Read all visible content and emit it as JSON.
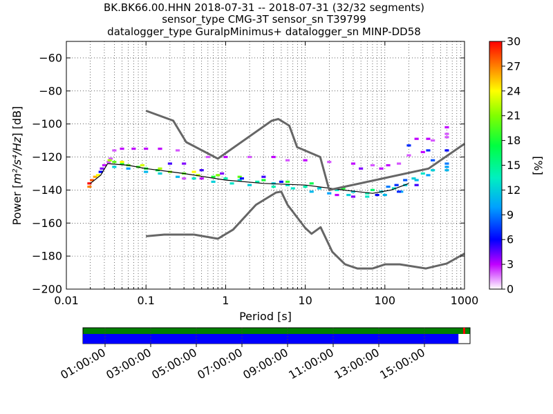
{
  "chart_data": {
    "type": "heatmap",
    "title_lines": [
      "BK.BK66.00.HHN   2018-07-31 -- 2018-07-31  (32/32 segments)",
      "sensor_type CMG-3T sensor_sn T39799",
      "datalogger_type GuralpMinimus+ datalogger_sn MINP-DD58"
    ],
    "xlabel": "Period [s]",
    "ylabel_prefix": "Power [",
    "ylabel_math": "m²/s⁴/Hz",
    "ylabel_suffix": "] [dB]",
    "x_scale": "log",
    "xlim": [
      0.01,
      1000
    ],
    "ylim": [
      -200,
      -50
    ],
    "x_ticks": [
      {
        "value": 0.01,
        "label": "0.01"
      },
      {
        "value": 0.1,
        "label": "0.1"
      },
      {
        "value": 1,
        "label": "1"
      },
      {
        "value": 10,
        "label": "10"
      },
      {
        "value": 100,
        "label": "100"
      },
      {
        "value": 1000,
        "label": "1000"
      }
    ],
    "y_ticks": [
      {
        "value": -60,
        "label": "−60"
      },
      {
        "value": -80,
        "label": "−80"
      },
      {
        "value": -100,
        "label": "−100"
      },
      {
        "value": -120,
        "label": "−120"
      },
      {
        "value": -140,
        "label": "−140"
      },
      {
        "value": -160,
        "label": "−160"
      },
      {
        "value": -180,
        "label": "−180"
      },
      {
        "value": -200,
        "label": "−200"
      }
    ],
    "grid": true,
    "colorbar": {
      "label": "[%]",
      "range": [
        0,
        30
      ],
      "ticks": [
        {
          "value": 0,
          "label": "0"
        },
        {
          "value": 3,
          "label": "3"
        },
        {
          "value": 6,
          "label": "6"
        },
        {
          "value": 9,
          "label": "9"
        },
        {
          "value": 12,
          "label": "12"
        },
        {
          "value": 15,
          "label": "15"
        },
        {
          "value": 18,
          "label": "18"
        },
        {
          "value": 21,
          "label": "21"
        },
        {
          "value": 24,
          "label": "24"
        },
        {
          "value": 27,
          "label": "27"
        },
        {
          "value": 30,
          "label": "30"
        }
      ]
    },
    "noise_models": [
      {
        "name": "",
        "color": "#666666",
        "points": [
          [
            0.1,
            -92
          ],
          [
            0.22,
            -98
          ],
          [
            0.32,
            -111
          ],
          [
            0.8,
            -121
          ],
          [
            3.8,
            -98
          ],
          [
            4.6,
            -97
          ],
          [
            6.3,
            -101
          ],
          [
            7.9,
            -114
          ],
          [
            15.4,
            -120
          ],
          [
            20,
            -140
          ],
          [
            354,
            -127
          ],
          [
            1000,
            -112
          ]
        ]
      },
      {
        "name": "",
        "color": "#666666",
        "points": [
          [
            0.1,
            -168
          ],
          [
            0.17,
            -167
          ],
          [
            0.4,
            -167
          ],
          [
            0.8,
            -169.5
          ],
          [
            1.24,
            -164
          ],
          [
            2.4,
            -149
          ],
          [
            4.3,
            -141.5
          ],
          [
            5,
            -141
          ],
          [
            6,
            -149
          ],
          [
            10,
            -163
          ],
          [
            12,
            -166.5
          ],
          [
            15.6,
            -162.5
          ],
          [
            21.9,
            -177.5
          ],
          [
            31.6,
            -185
          ],
          [
            45,
            -187.5
          ],
          [
            70,
            -187.5
          ],
          [
            101,
            -185
          ],
          [
            154,
            -185
          ],
          [
            328,
            -187.5
          ],
          [
            600,
            -184.5
          ],
          [
            1000,
            -178.5
          ]
        ]
      }
    ],
    "mode_curve": {
      "color": "#000000",
      "points": [
        [
          0.02,
          -136
        ],
        [
          0.027,
          -131
        ],
        [
          0.033,
          -124
        ],
        [
          0.06,
          -125
        ],
        [
          0.1,
          -127
        ],
        [
          0.3,
          -130
        ],
        [
          1,
          -134
        ],
        [
          3,
          -136
        ],
        [
          10,
          -137
        ],
        [
          30,
          -140
        ],
        [
          70,
          -142
        ],
        [
          120,
          -140
        ],
        [
          200,
          -136
        ]
      ]
    },
    "density_cells": [
      {
        "period": 0.0195,
        "power": -138,
        "pct": 27
      },
      {
        "period": 0.0195,
        "power": -136,
        "pct": 30
      },
      {
        "period": 0.021,
        "power": -134,
        "pct": 28
      },
      {
        "period": 0.023,
        "power": -132,
        "pct": 26
      },
      {
        "period": 0.025,
        "power": -131,
        "pct": 24
      },
      {
        "period": 0.027,
        "power": -129,
        "pct": 6
      },
      {
        "period": 0.028,
        "power": -127,
        "pct": 4
      },
      {
        "period": 0.03,
        "power": -125,
        "pct": 3
      },
      {
        "period": 0.034,
        "power": -123,
        "pct": 2
      },
      {
        "period": 0.036,
        "power": -121,
        "pct": 2
      },
      {
        "period": 0.04,
        "power": -116,
        "pct": 2
      },
      {
        "period": 0.05,
        "power": -115,
        "pct": 3
      },
      {
        "period": 0.07,
        "power": -115,
        "pct": 3
      },
      {
        "period": 0.1,
        "power": -115,
        "pct": 3
      },
      {
        "period": 0.15,
        "power": -115,
        "pct": 3
      },
      {
        "period": 0.25,
        "power": -116,
        "pct": 2
      },
      {
        "period": 0.035,
        "power": -122,
        "pct": 22
      },
      {
        "period": 0.04,
        "power": -123,
        "pct": 20
      },
      {
        "period": 0.05,
        "power": -124,
        "pct": 18
      },
      {
        "period": 0.06,
        "power": -125,
        "pct": 20
      },
      {
        "period": 0.08,
        "power": -126,
        "pct": 19
      },
      {
        "period": 0.1,
        "power": -127,
        "pct": 18
      },
      {
        "period": 0.14,
        "power": -128,
        "pct": 17
      },
      {
        "period": 0.2,
        "power": -129,
        "pct": 21
      },
      {
        "period": 0.3,
        "power": -130,
        "pct": 20
      },
      {
        "period": 0.45,
        "power": -131,
        "pct": 22
      },
      {
        "period": 0.7,
        "power": -132,
        "pct": 18
      },
      {
        "period": 1,
        "power": -133,
        "pct": 14
      },
      {
        "period": 1.5,
        "power": -134,
        "pct": 13
      },
      {
        "period": 2.5,
        "power": -135,
        "pct": 14
      },
      {
        "period": 4,
        "power": -136,
        "pct": 12
      },
      {
        "period": 6,
        "power": -137,
        "pct": 13
      },
      {
        "period": 10,
        "power": -138,
        "pct": 14
      },
      {
        "period": 15,
        "power": -139,
        "pct": 12
      },
      {
        "period": 25,
        "power": -140,
        "pct": 13
      },
      {
        "period": 40,
        "power": -141,
        "pct": 12
      },
      {
        "period": 60,
        "power": -142,
        "pct": 14
      },
      {
        "period": 90,
        "power": -141,
        "pct": 12
      },
      {
        "period": 130,
        "power": -139,
        "pct": 13
      },
      {
        "period": 180,
        "power": -137,
        "pct": 12
      },
      {
        "period": 250,
        "power": -134,
        "pct": 11
      },
      {
        "period": 350,
        "power": -131,
        "pct": 10
      },
      {
        "period": 0.04,
        "power": -126,
        "pct": 12
      },
      {
        "period": 0.06,
        "power": -127,
        "pct": 10
      },
      {
        "period": 0.1,
        "power": -129,
        "pct": 11
      },
      {
        "period": 0.15,
        "power": -130,
        "pct": 12
      },
      {
        "period": 0.25,
        "power": -132,
        "pct": 11
      },
      {
        "period": 0.4,
        "power": -133,
        "pct": 13
      },
      {
        "period": 0.7,
        "power": -135,
        "pct": 12
      },
      {
        "period": 1.2,
        "power": -136,
        "pct": 13
      },
      {
        "period": 2,
        "power": -137,
        "pct": 12
      },
      {
        "period": 4,
        "power": -138,
        "pct": 14
      },
      {
        "period": 7,
        "power": -139,
        "pct": 13
      },
      {
        "period": 12,
        "power": -141,
        "pct": 11
      },
      {
        "period": 20,
        "power": -142,
        "pct": 10
      },
      {
        "period": 35,
        "power": -143,
        "pct": 12
      },
      {
        "period": 60,
        "power": -144,
        "pct": 13
      },
      {
        "period": 100,
        "power": -143,
        "pct": 11
      },
      {
        "period": 160,
        "power": -141,
        "pct": 10
      },
      {
        "period": 0.05,
        "power": -123,
        "pct": 24
      },
      {
        "period": 0.09,
        "power": -125,
        "pct": 23
      },
      {
        "period": 0.15,
        "power": -127,
        "pct": 22
      },
      {
        "period": 0.4,
        "power": -129,
        "pct": 24
      },
      {
        "period": 0.8,
        "power": -131,
        "pct": 21
      },
      {
        "period": 1.5,
        "power": -132,
        "pct": 20
      },
      {
        "period": 3,
        "power": -134,
        "pct": 18
      },
      {
        "period": 6,
        "power": -135,
        "pct": 19
      },
      {
        "period": 12,
        "power": -136,
        "pct": 17
      },
      {
        "period": 30,
        "power": -139,
        "pct": 18
      },
      {
        "period": 70,
        "power": -140,
        "pct": 16
      },
      {
        "period": 0.2,
        "power": -124,
        "pct": 5
      },
      {
        "period": 0.3,
        "power": -124,
        "pct": 4
      },
      {
        "period": 0.5,
        "power": -128,
        "pct": 5
      },
      {
        "period": 0.9,
        "power": -130,
        "pct": 4
      },
      {
        "period": 1.6,
        "power": -133,
        "pct": 6
      },
      {
        "period": 3,
        "power": -132,
        "pct": 5
      },
      {
        "period": 5,
        "power": -135,
        "pct": 6
      },
      {
        "period": 0.6,
        "power": -120,
        "pct": 2
      },
      {
        "period": 1,
        "power": -120,
        "pct": 3
      },
      {
        "period": 2,
        "power": -120,
        "pct": 2
      },
      {
        "period": 4,
        "power": -120,
        "pct": 3
      },
      {
        "period": 6,
        "power": -122,
        "pct": 2
      },
      {
        "period": 10,
        "power": -122,
        "pct": 3
      },
      {
        "period": 20,
        "power": -123,
        "pct": 2
      },
      {
        "period": 40,
        "power": -124,
        "pct": 3
      },
      {
        "period": 70,
        "power": -125,
        "pct": 2
      },
      {
        "period": 110,
        "power": -125,
        "pct": 3
      },
      {
        "period": 150,
        "power": -124,
        "pct": 2
      },
      {
        "period": 200,
        "power": -119,
        "pct": 2
      },
      {
        "period": 300,
        "power": -117,
        "pct": 3
      },
      {
        "period": 50,
        "power": -127,
        "pct": 4
      },
      {
        "period": 90,
        "power": -127,
        "pct": 3
      },
      {
        "period": 200,
        "power": -113,
        "pct": 7
      },
      {
        "period": 250,
        "power": -109,
        "pct": 3
      },
      {
        "period": 350,
        "power": -109,
        "pct": 3
      },
      {
        "period": 400,
        "power": -110,
        "pct": 2
      },
      {
        "period": 600,
        "power": -106,
        "pct": 2
      },
      {
        "period": 600,
        "power": -102,
        "pct": 3
      },
      {
        "period": 600,
        "power": -108,
        "pct": 2
      },
      {
        "period": 350,
        "power": -116,
        "pct": 7
      },
      {
        "period": 600,
        "power": -116,
        "pct": 6
      },
      {
        "period": 400,
        "power": -122,
        "pct": 8
      },
      {
        "period": 600,
        "power": -124,
        "pct": 9
      },
      {
        "period": 600,
        "power": -126,
        "pct": 10
      },
      {
        "period": 600,
        "power": -128,
        "pct": 11
      },
      {
        "period": 400,
        "power": -128,
        "pct": 12
      },
      {
        "period": 300,
        "power": -130,
        "pct": 13
      },
      {
        "period": 230,
        "power": -133,
        "pct": 12
      },
      {
        "period": 180,
        "power": -134,
        "pct": 8
      },
      {
        "period": 140,
        "power": -137,
        "pct": 7
      },
      {
        "period": 110,
        "power": -138,
        "pct": 9
      },
      {
        "period": 80,
        "power": -143,
        "pct": 6
      },
      {
        "period": 150,
        "power": -141,
        "pct": 7
      },
      {
        "period": 250,
        "power": -137,
        "pct": 5
      },
      {
        "period": 40,
        "power": -144,
        "pct": 4
      },
      {
        "period": 25,
        "power": -143,
        "pct": 3
      },
      {
        "period": 0.5,
        "power": -133,
        "pct": 3
      },
      {
        "period": 0.3,
        "power": -133,
        "pct": 2
      }
    ],
    "timeline": {
      "labels": [
        "01:00:00",
        "03:00:00",
        "05:00:00",
        "07:00:00",
        "09:00:00",
        "11:00:00",
        "13:00:00",
        "15:00:00"
      ],
      "top_bar_color": "#008000",
      "bottom_bar_color": "#0000ff",
      "bottom_fill_fraction": 0.97,
      "top_marker_colors": [
        "#ff0000",
        "#008000"
      ]
    }
  }
}
